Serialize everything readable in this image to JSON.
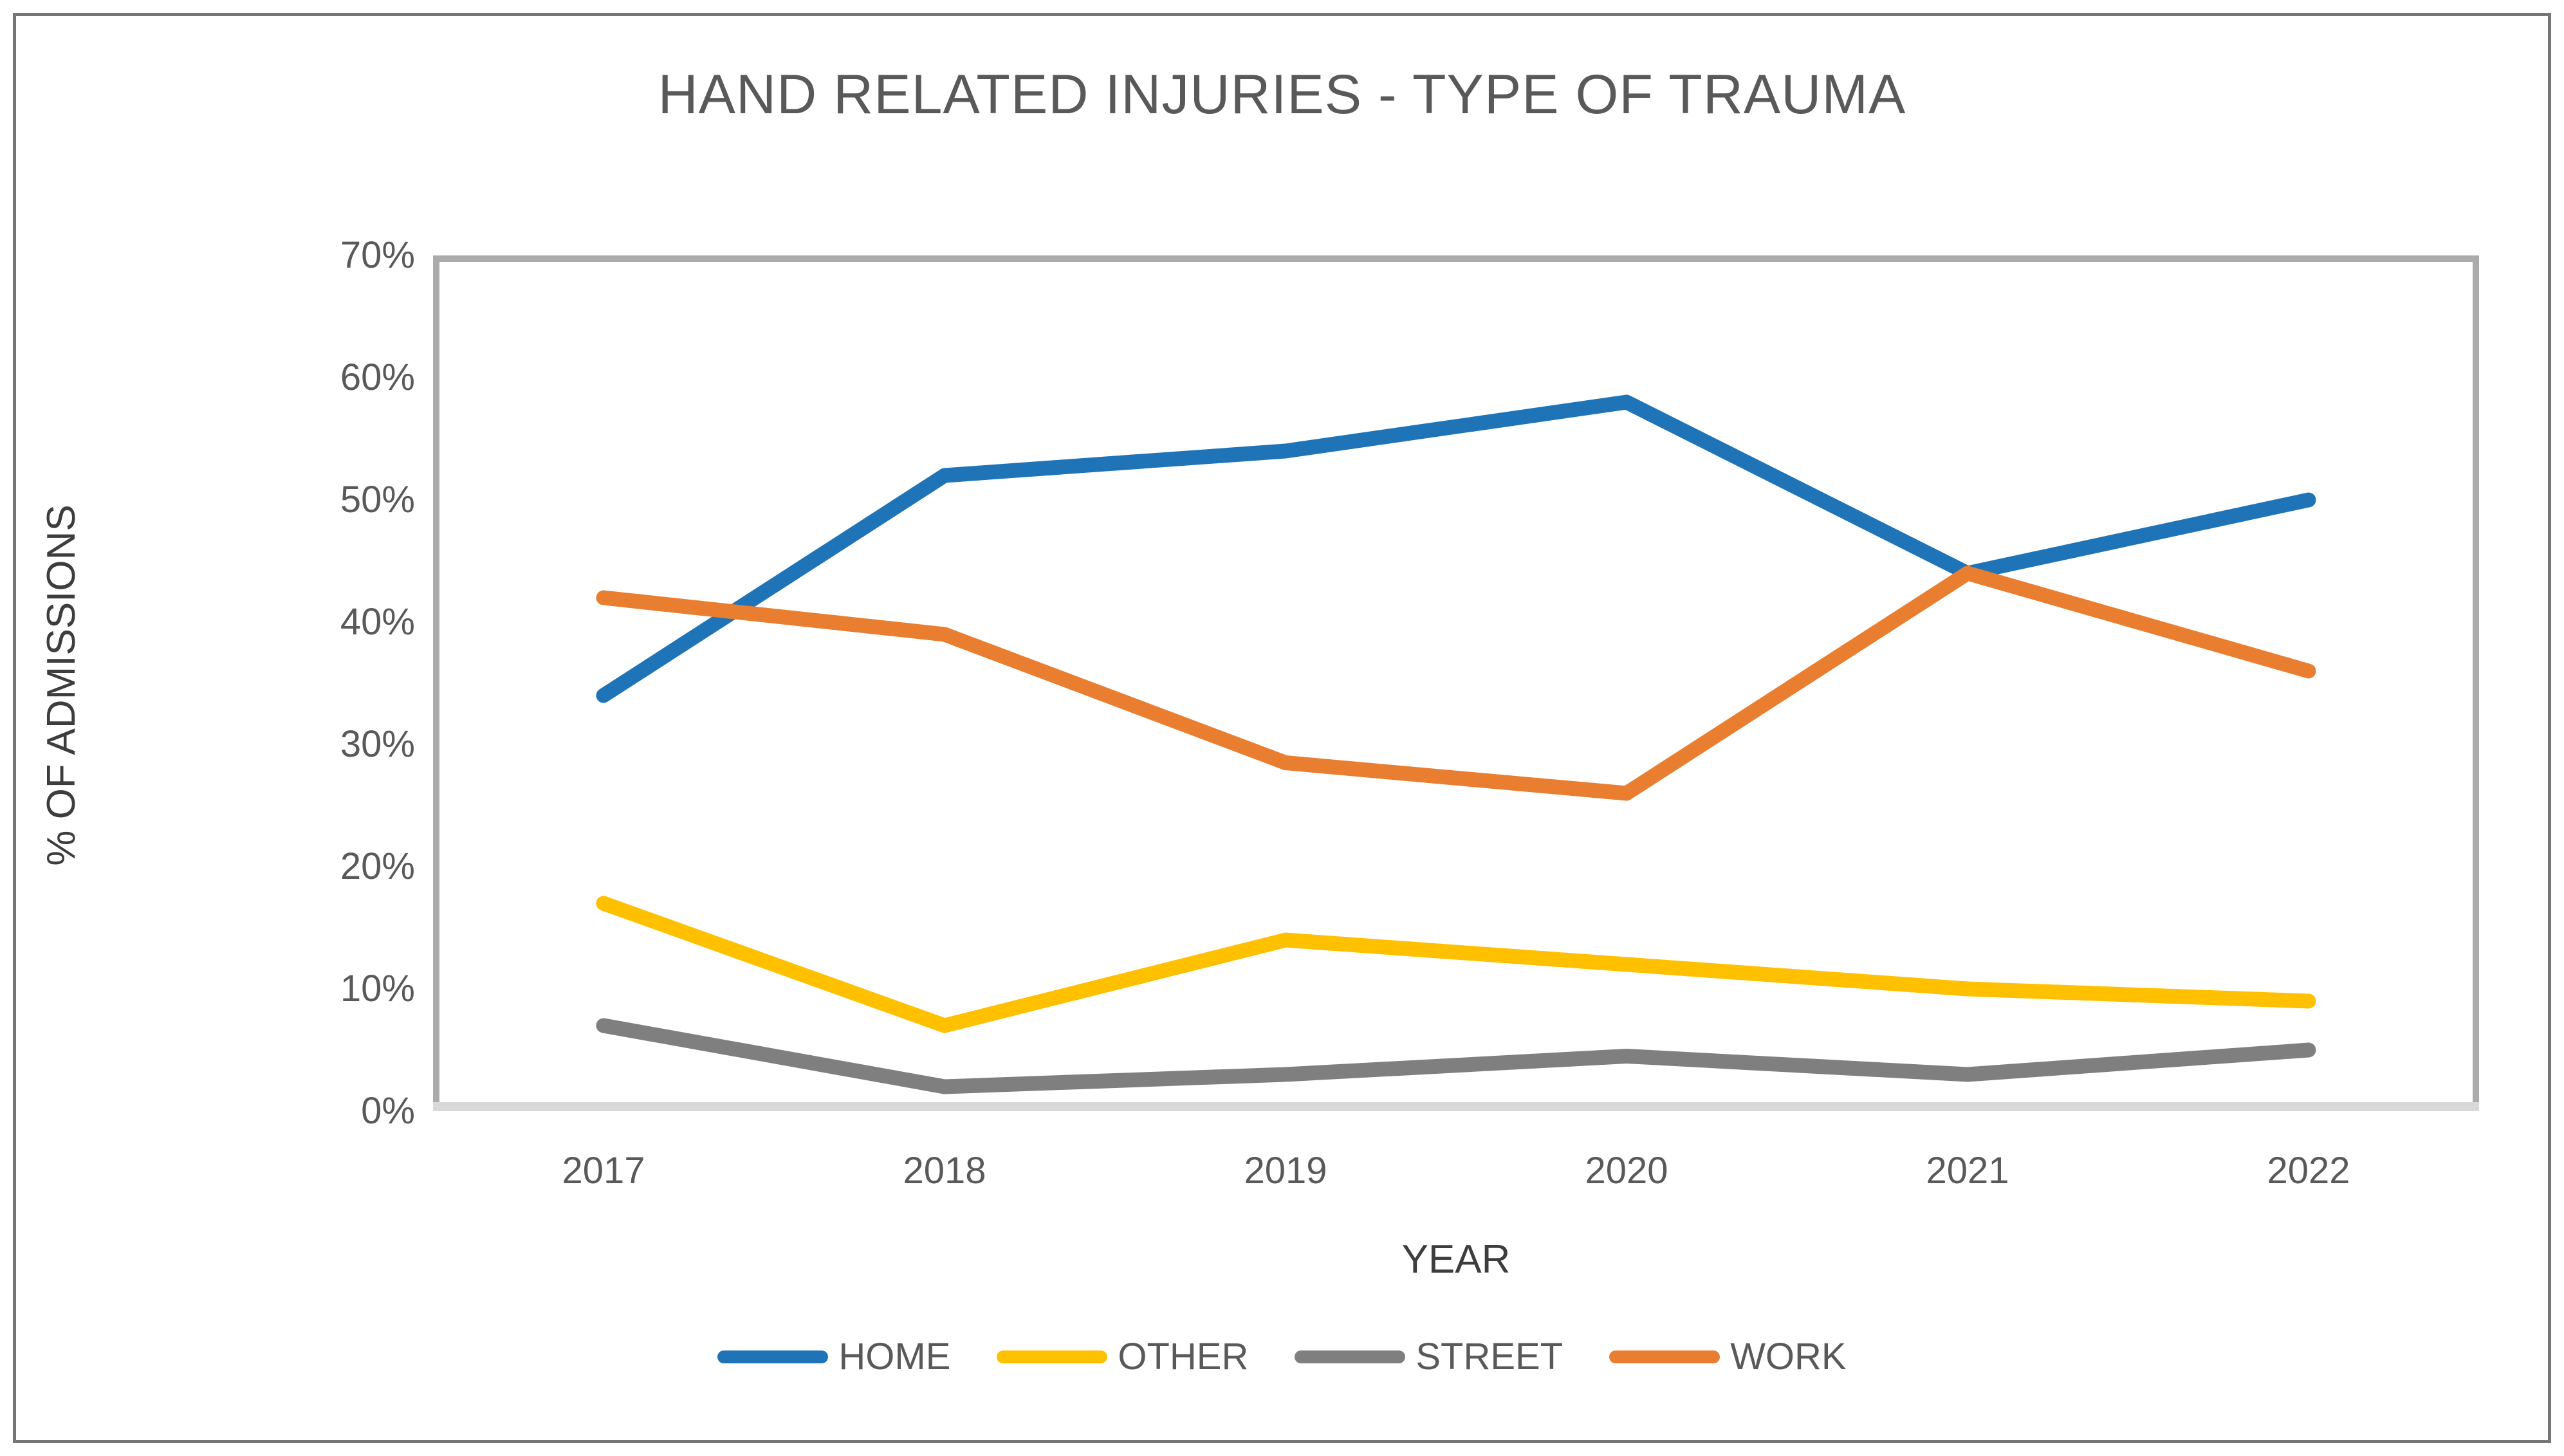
{
  "figure": {
    "title": "HAND RELATED INJURIES - TYPE OF TRAUMA"
  },
  "chart_data": {
    "type": "line",
    "title": "HAND RELATED INJURIES - TYPE OF TRAUMA",
    "xlabel": "YEAR",
    "ylabel": "% OF ADMISSIONS",
    "categories": [
      "2017",
      "2018",
      "2019",
      "2020",
      "2021",
      "2022"
    ],
    "y_tick_labels": [
      "70%",
      "60%",
      "50%",
      "40%",
      "30%",
      "20%",
      "10%",
      "0%"
    ],
    "ylim": [
      0,
      70
    ],
    "grid": false,
    "legend_position": "bottom",
    "series": [
      {
        "name": "HOME",
        "color": "#1F74B8",
        "values": [
          34,
          52,
          54,
          58,
          44,
          50
        ]
      },
      {
        "name": "OTHER",
        "color": "#FFC000",
        "values": [
          17,
          7,
          14,
          12,
          10,
          9
        ]
      },
      {
        "name": "STREET",
        "color": "#7F7F7F",
        "values": [
          7,
          2,
          3,
          4.5,
          3,
          5
        ]
      },
      {
        "name": "WORK",
        "color": "#E97E30",
        "values": [
          42,
          39,
          28.5,
          26,
          44,
          36
        ]
      }
    ],
    "plot_border_color": "#ABABAB",
    "baseline_color": "#D9D9D9"
  }
}
